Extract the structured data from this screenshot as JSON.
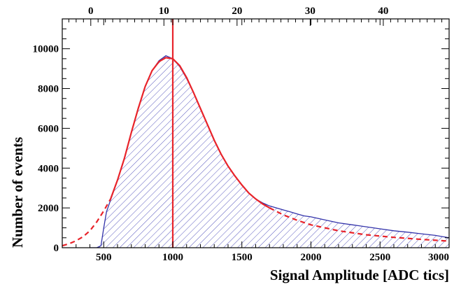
{
  "chart_data": {
    "type": "area",
    "title": "",
    "xlabel": "Signal Amplitude [ADC tics]",
    "ylabel": "Number of events",
    "xlim": [
      200,
      3000
    ],
    "ylim": [
      0,
      11500
    ],
    "x_ticks": [
      500,
      1000,
      1500,
      2000,
      2500,
      3000
    ],
    "x_tick_labels": [
      "500",
      "1000",
      "1500",
      "2000",
      "2500",
      "3000"
    ],
    "y_ticks": [
      0,
      2000,
      4000,
      6000,
      8000,
      10000
    ],
    "y_tick_labels": [
      "0",
      "2000",
      "4000",
      "6000",
      "8000",
      "10000"
    ],
    "top_axis": {
      "ticks": [
        0,
        10,
        20,
        30,
        40
      ],
      "tick_labels": [
        "0",
        "10",
        "20",
        "30",
        "40"
      ],
      "lim": [
        -3.9,
        49
      ]
    },
    "grid": false,
    "legend": "none",
    "vertical_line_x": 1000,
    "series": [
      {
        "kind": "histogram",
        "color": "#3333aa",
        "fill": "hatched",
        "x": [
          400,
          450,
          480,
          500,
          520,
          550,
          600,
          650,
          700,
          750,
          800,
          850,
          900,
          950,
          1000,
          1050,
          1100,
          1150,
          1200,
          1250,
          1300,
          1350,
          1400,
          1450,
          1500,
          1550,
          1600,
          1650,
          1700,
          1750,
          1800,
          1850,
          1900,
          1950,
          2000,
          2100,
          2200,
          2300,
          2400,
          2500,
          2600,
          2700,
          2800,
          2900,
          3000
        ],
        "y": [
          0,
          0,
          100,
          1000,
          1800,
          2400,
          3400,
          4500,
          5800,
          7000,
          8100,
          8900,
          9400,
          9650,
          9500,
          9100,
          8500,
          7800,
          7000,
          6200,
          5400,
          4700,
          4100,
          3600,
          3150,
          2750,
          2450,
          2250,
          2100,
          2000,
          1900,
          1800,
          1700,
          1600,
          1550,
          1400,
          1250,
          1150,
          1050,
          950,
          850,
          780,
          700,
          620,
          500
        ]
      },
      {
        "kind": "fit",
        "color": "#e8232a",
        "style": "solid",
        "x": [
          550,
          600,
          650,
          700,
          750,
          800,
          850,
          900,
          950,
          1000,
          1050,
          1100,
          1150,
          1200,
          1250,
          1300,
          1350,
          1400,
          1450,
          1500,
          1550,
          1600,
          1650,
          1700
        ],
        "y": [
          2450,
          3400,
          4500,
          5800,
          7000,
          8100,
          8900,
          9350,
          9550,
          9500,
          9150,
          8550,
          7800,
          7000,
          6200,
          5400,
          4700,
          4100,
          3600,
          3150,
          2750,
          2450,
          2200,
          2000
        ]
      },
      {
        "kind": "fit-extrapolation",
        "color": "#e8232a",
        "style": "dashed",
        "x": [
          200,
          250,
          300,
          350,
          400,
          450,
          500,
          550
        ],
        "y": [
          100,
          200,
          350,
          550,
          850,
          1300,
          1850,
          2450
        ]
      },
      {
        "kind": "fit-extrapolation",
        "color": "#e8232a",
        "style": "dashed",
        "x": [
          1700,
          1800,
          1900,
          2000,
          2200,
          2400,
          2600,
          2800,
          3000
        ],
        "y": [
          2000,
          1650,
          1380,
          1150,
          850,
          650,
          520,
          420,
          330
        ]
      }
    ]
  }
}
